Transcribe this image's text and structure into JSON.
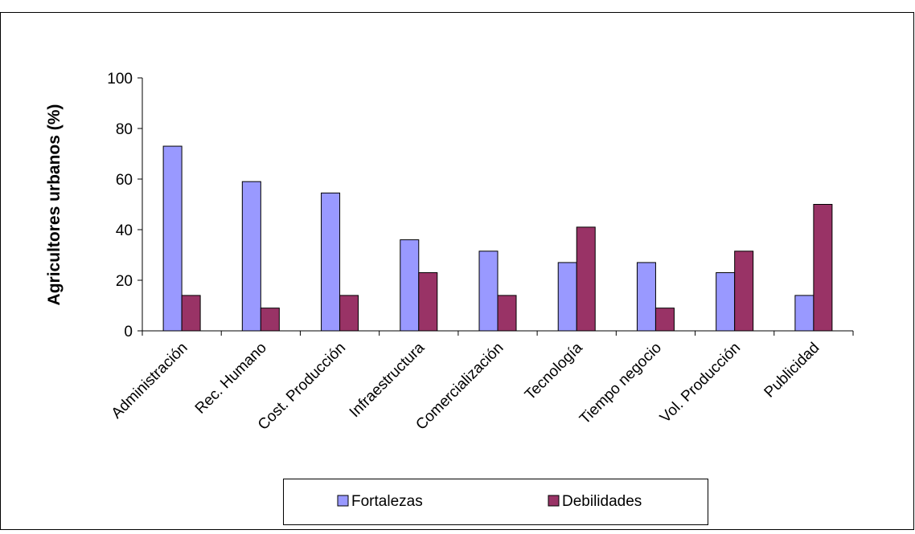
{
  "chart_data": {
    "type": "bar",
    "ylabel": "Agricultores urbanos (%)",
    "ylim": [
      0,
      100
    ],
    "yticks": [
      0,
      20,
      40,
      60,
      80,
      100
    ],
    "categories": [
      "Administración",
      "Rec. Humano",
      "Cost. Producción",
      "Infraestructura",
      "Comercialización",
      "Tecnología",
      "Tiempo negocio",
      "Vol. Producción",
      "Publicidad"
    ],
    "series": [
      {
        "name": "Fortalezas",
        "color": "#9999ff",
        "values": [
          73,
          59,
          54.5,
          36,
          31.5,
          27,
          27,
          23,
          14
        ]
      },
      {
        "name": "Debilidades",
        "color": "#993366",
        "values": [
          14,
          9,
          14,
          23,
          14,
          41,
          9,
          31.5,
          50
        ]
      }
    ],
    "grid": false,
    "legend_position": "bottom"
  }
}
